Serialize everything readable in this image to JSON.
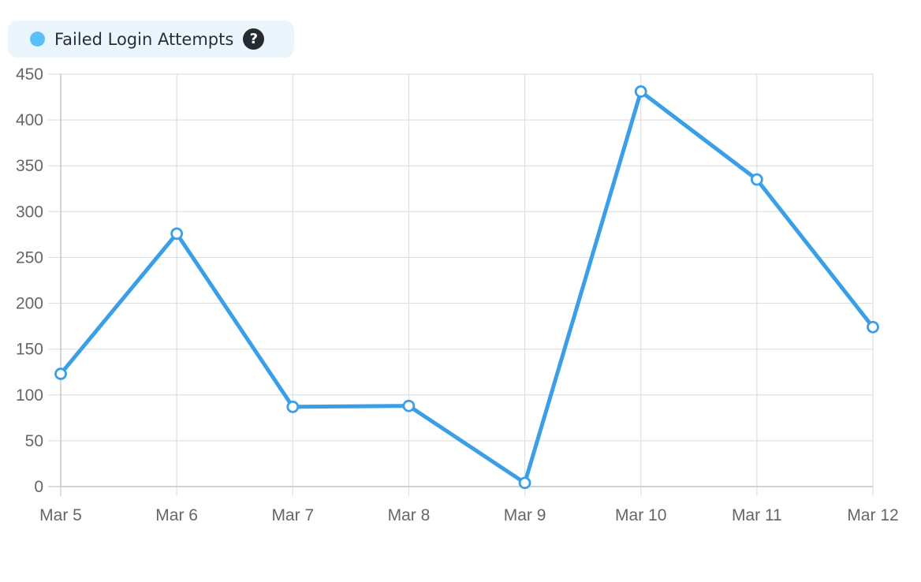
{
  "legend": {
    "label": "Failed Login Attempts",
    "help_icon": "question-mark-icon",
    "color": "#5bc0f8"
  },
  "colors": {
    "line": "#3a9fe6",
    "point_fill": "#ffffff",
    "grid": "#e0e0e0",
    "axis": "#c8c8c8"
  },
  "chart_data": {
    "type": "line",
    "categories": [
      "Mar 5",
      "Mar 6",
      "Mar 7",
      "Mar 8",
      "Mar 9",
      "Mar 10",
      "Mar 11",
      "Mar 12"
    ],
    "series": [
      {
        "name": "Failed Login Attempts",
        "values": [
          123,
          276,
          87,
          88,
          4,
          431,
          335,
          174
        ]
      }
    ],
    "y_ticks": [
      "0",
      "50",
      "100",
      "150",
      "200",
      "250",
      "300",
      "350",
      "400",
      "450"
    ],
    "ylim": [
      0,
      450
    ],
    "grid": true,
    "legend_position": "top-left"
  }
}
